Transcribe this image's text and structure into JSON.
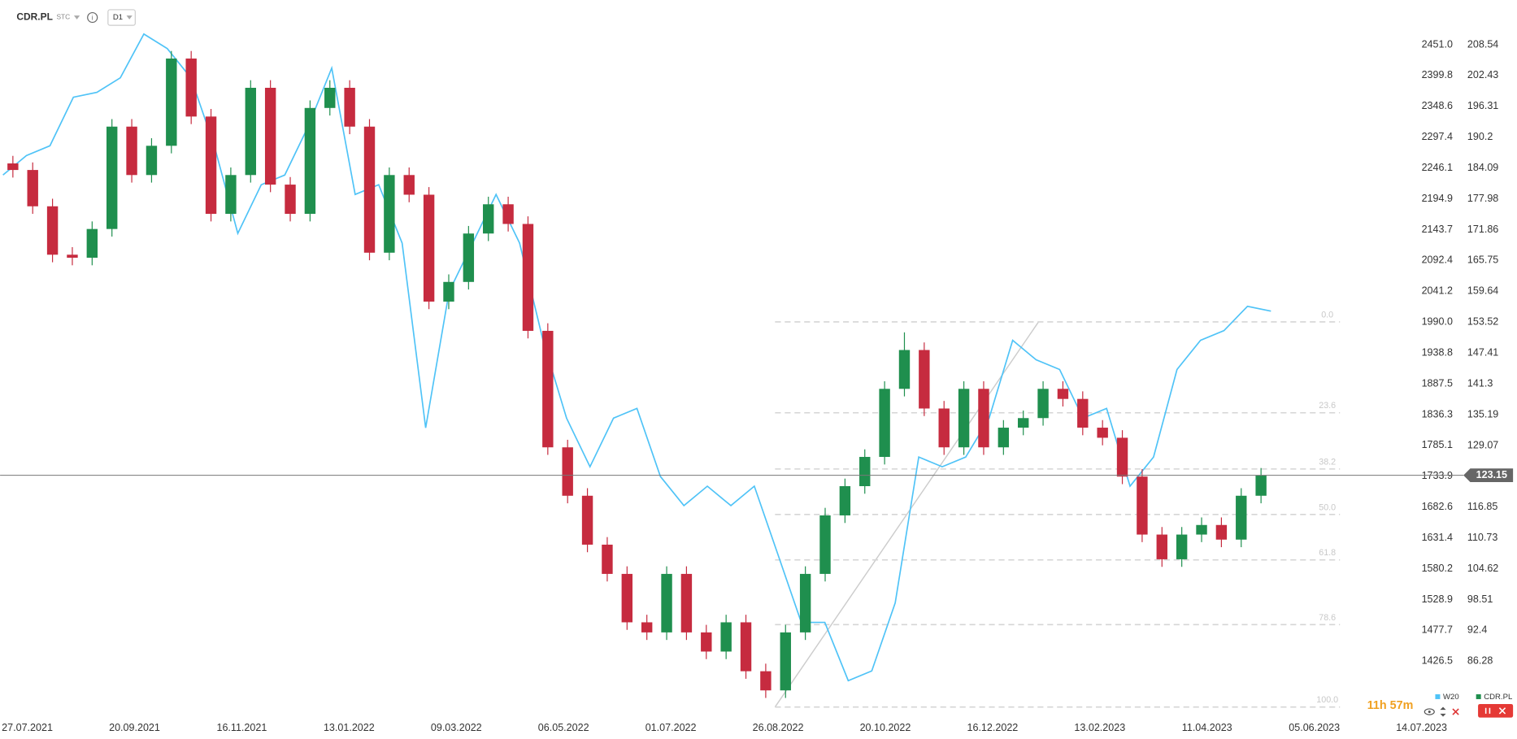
{
  "header": {
    "symbol": "CDR.PL",
    "market": "STC",
    "interval": "D1"
  },
  "countdown": "11h 57m",
  "chart_data": {
    "type": "candlestick",
    "xticks": [
      "27.07.2021",
      "20.09.2021",
      "16.11.2021",
      "13.01.2022",
      "09.03.2022",
      "06.05.2022",
      "01.07.2022",
      "26.08.2022",
      "20.10.2022",
      "16.12.2022",
      "13.02.2023",
      "11.04.2023",
      "05.06.2023",
      "14.07.2023"
    ],
    "ylim": [
      75.68,
      217.41
    ],
    "yticks": [
      208.54,
      202.43,
      196.31,
      190.2,
      184.09,
      177.98,
      171.86,
      165.75,
      159.64,
      153.52,
      147.41,
      141.3,
      135.19,
      129.07,
      116.85,
      110.73,
      104.62,
      98.51,
      92.4,
      86.28
    ],
    "y2lim": [
      1337.6,
      2525.3
    ],
    "y2ticks": [
      {
        "value": 2451,
        "label": "2451.0"
      },
      2399.8,
      2348.6,
      2297.4,
      2246.1,
      2194.9,
      2143.7,
      2092.4,
      2041.2,
      {
        "value": 1990,
        "label": "1990.0"
      },
      1938.8,
      1887.5,
      1836.3,
      1785.1,
      1733.9,
      1682.6,
      1631.4,
      1580.2,
      1528.9,
      1477.7,
      1426.5
    ],
    "current_price": 123.15,
    "fibonacci": {
      "levels": [
        {
          "value": 0,
          "label": "0.0"
        },
        23.6,
        38.2,
        {
          "value": 50,
          "label": "50.0"
        },
        61.8,
        78.6,
        {
          "value": 100,
          "label": "100.0"
        }
      ],
      "high": 153.58,
      "low": 77.2
    },
    "series": [
      {
        "name": "W20",
        "type": "line",
        "axis": "y2",
        "color": "#4fc3f7",
        "values": [
          2234.5,
          2266.8,
          2283,
          2363.7,
          2371.8,
          2396,
          2468.8,
          2444.5,
          2396,
          2283,
          2137.5,
          2218.3,
          2234.5,
          2315.3,
          2412.2,
          2202.1,
          2218.3,
          2121.3,
          1814.3,
          2040.5,
          2121.3,
          2202.1,
          2121.3,
          1959.7,
          1830.5,
          1749.6,
          1830.5,
          1846.6,
          1733.5,
          1685,
          1717.4,
          1685,
          1717.4,
          1604.2,
          1491,
          1491,
          1394.1,
          1410.3,
          1523.4,
          1765.8,
          1749.6,
          1765.8,
          1830.5,
          1959.7,
          1927.4,
          1911.2,
          1830.5,
          1846.6,
          1717.4,
          1765.8,
          1911.2,
          1959.7,
          1975.9,
          2016.3,
          2008.2
        ]
      },
      {
        "name": "CDR.PL",
        "type": "candlestick",
        "color": "#1f8f4e",
        "up_color": "#1f8f4e",
        "down_color": "#c62b3f",
        "open": [
          185.0,
          183.7,
          176.5,
          166.9,
          166.3,
          172.0,
          192.3,
          182.7,
          188.5,
          205.8,
          194.3,
          175.0,
          182.7,
          200.0,
          180.8,
          175.0,
          196.0,
          200.0,
          192.3,
          167.3,
          182.7,
          178.8,
          157.6,
          161.5,
          171.1,
          176.9,
          173.0,
          151.8,
          128.7,
          119.1,
          109.4,
          103.6,
          94.0,
          92.0,
          103.6,
          92.0,
          88.2,
          94.0,
          84.3,
          80.5,
          92.0,
          103.6,
          115.2,
          121.0,
          126.8,
          140.3,
          148.0,
          136.4,
          128.7,
          140.3,
          128.7,
          132.6,
          134.5,
          140.3,
          138.3,
          132.6,
          130.6,
          122.9,
          111.4,
          106.5,
          111.4,
          113.3,
          110.4,
          119.1
        ],
        "high": [
          186.5,
          185.2,
          178.0,
          168.4,
          173.5,
          193.8,
          193.8,
          190.0,
          207.3,
          207.3,
          195.8,
          184.2,
          201.5,
          201.5,
          182.3,
          197.5,
          201.5,
          201.5,
          193.8,
          184.2,
          184.2,
          180.3,
          163.0,
          172.6,
          178.4,
          178.4,
          174.5,
          153.3,
          130.2,
          120.6,
          110.9,
          105.1,
          95.5,
          105.1,
          105.1,
          93.5,
          95.5,
          95.5,
          85.8,
          93.5,
          105.1,
          116.7,
          122.5,
          128.3,
          141.8,
          151.5,
          149.5,
          137.9,
          141.8,
          141.8,
          134.1,
          136.0,
          141.8,
          141.8,
          139.8,
          134.1,
          132.1,
          124.4,
          112.9,
          112.9,
          114.8,
          114.8,
          120.6,
          124.6
        ],
        "low": [
          182.2,
          175.0,
          165.4,
          164.8,
          164.8,
          170.5,
          181.2,
          181.2,
          187.0,
          192.8,
          173.5,
          173.5,
          181.2,
          179.3,
          173.5,
          173.5,
          194.5,
          190.8,
          165.8,
          165.8,
          177.3,
          156.1,
          156.1,
          160.0,
          169.6,
          171.5,
          150.3,
          127.2,
          117.6,
          107.9,
          102.1,
          92.5,
          90.5,
          90.5,
          90.5,
          86.7,
          86.7,
          82.8,
          79.0,
          79.0,
          90.5,
          102.1,
          113.7,
          119.5,
          125.3,
          138.8,
          134.9,
          127.2,
          127.2,
          127.2,
          127.2,
          131.1,
          133.0,
          136.8,
          131.1,
          129.1,
          121.4,
          109.9,
          105.0,
          105.0,
          109.9,
          108.9,
          108.9,
          117.6
        ],
        "close": [
          183.7,
          176.5,
          166.9,
          166.3,
          172.0,
          192.3,
          182.7,
          188.5,
          205.8,
          194.3,
          175.0,
          182.7,
          200.0,
          180.8,
          175.0,
          196.0,
          200.0,
          192.3,
          167.3,
          182.7,
          178.8,
          157.6,
          161.5,
          171.1,
          176.9,
          173.0,
          151.8,
          128.7,
          119.1,
          109.4,
          103.6,
          94.0,
          92.0,
          103.6,
          92.0,
          88.2,
          94.0,
          84.3,
          80.5,
          92.0,
          103.6,
          115.2,
          121.0,
          126.8,
          140.3,
          148.0,
          136.4,
          128.7,
          140.3,
          128.7,
          132.6,
          134.5,
          140.3,
          138.3,
          132.6,
          130.6,
          122.9,
          111.4,
          106.5,
          111.4,
          113.3,
          110.4,
          119.1,
          123.15
        ]
      }
    ]
  }
}
